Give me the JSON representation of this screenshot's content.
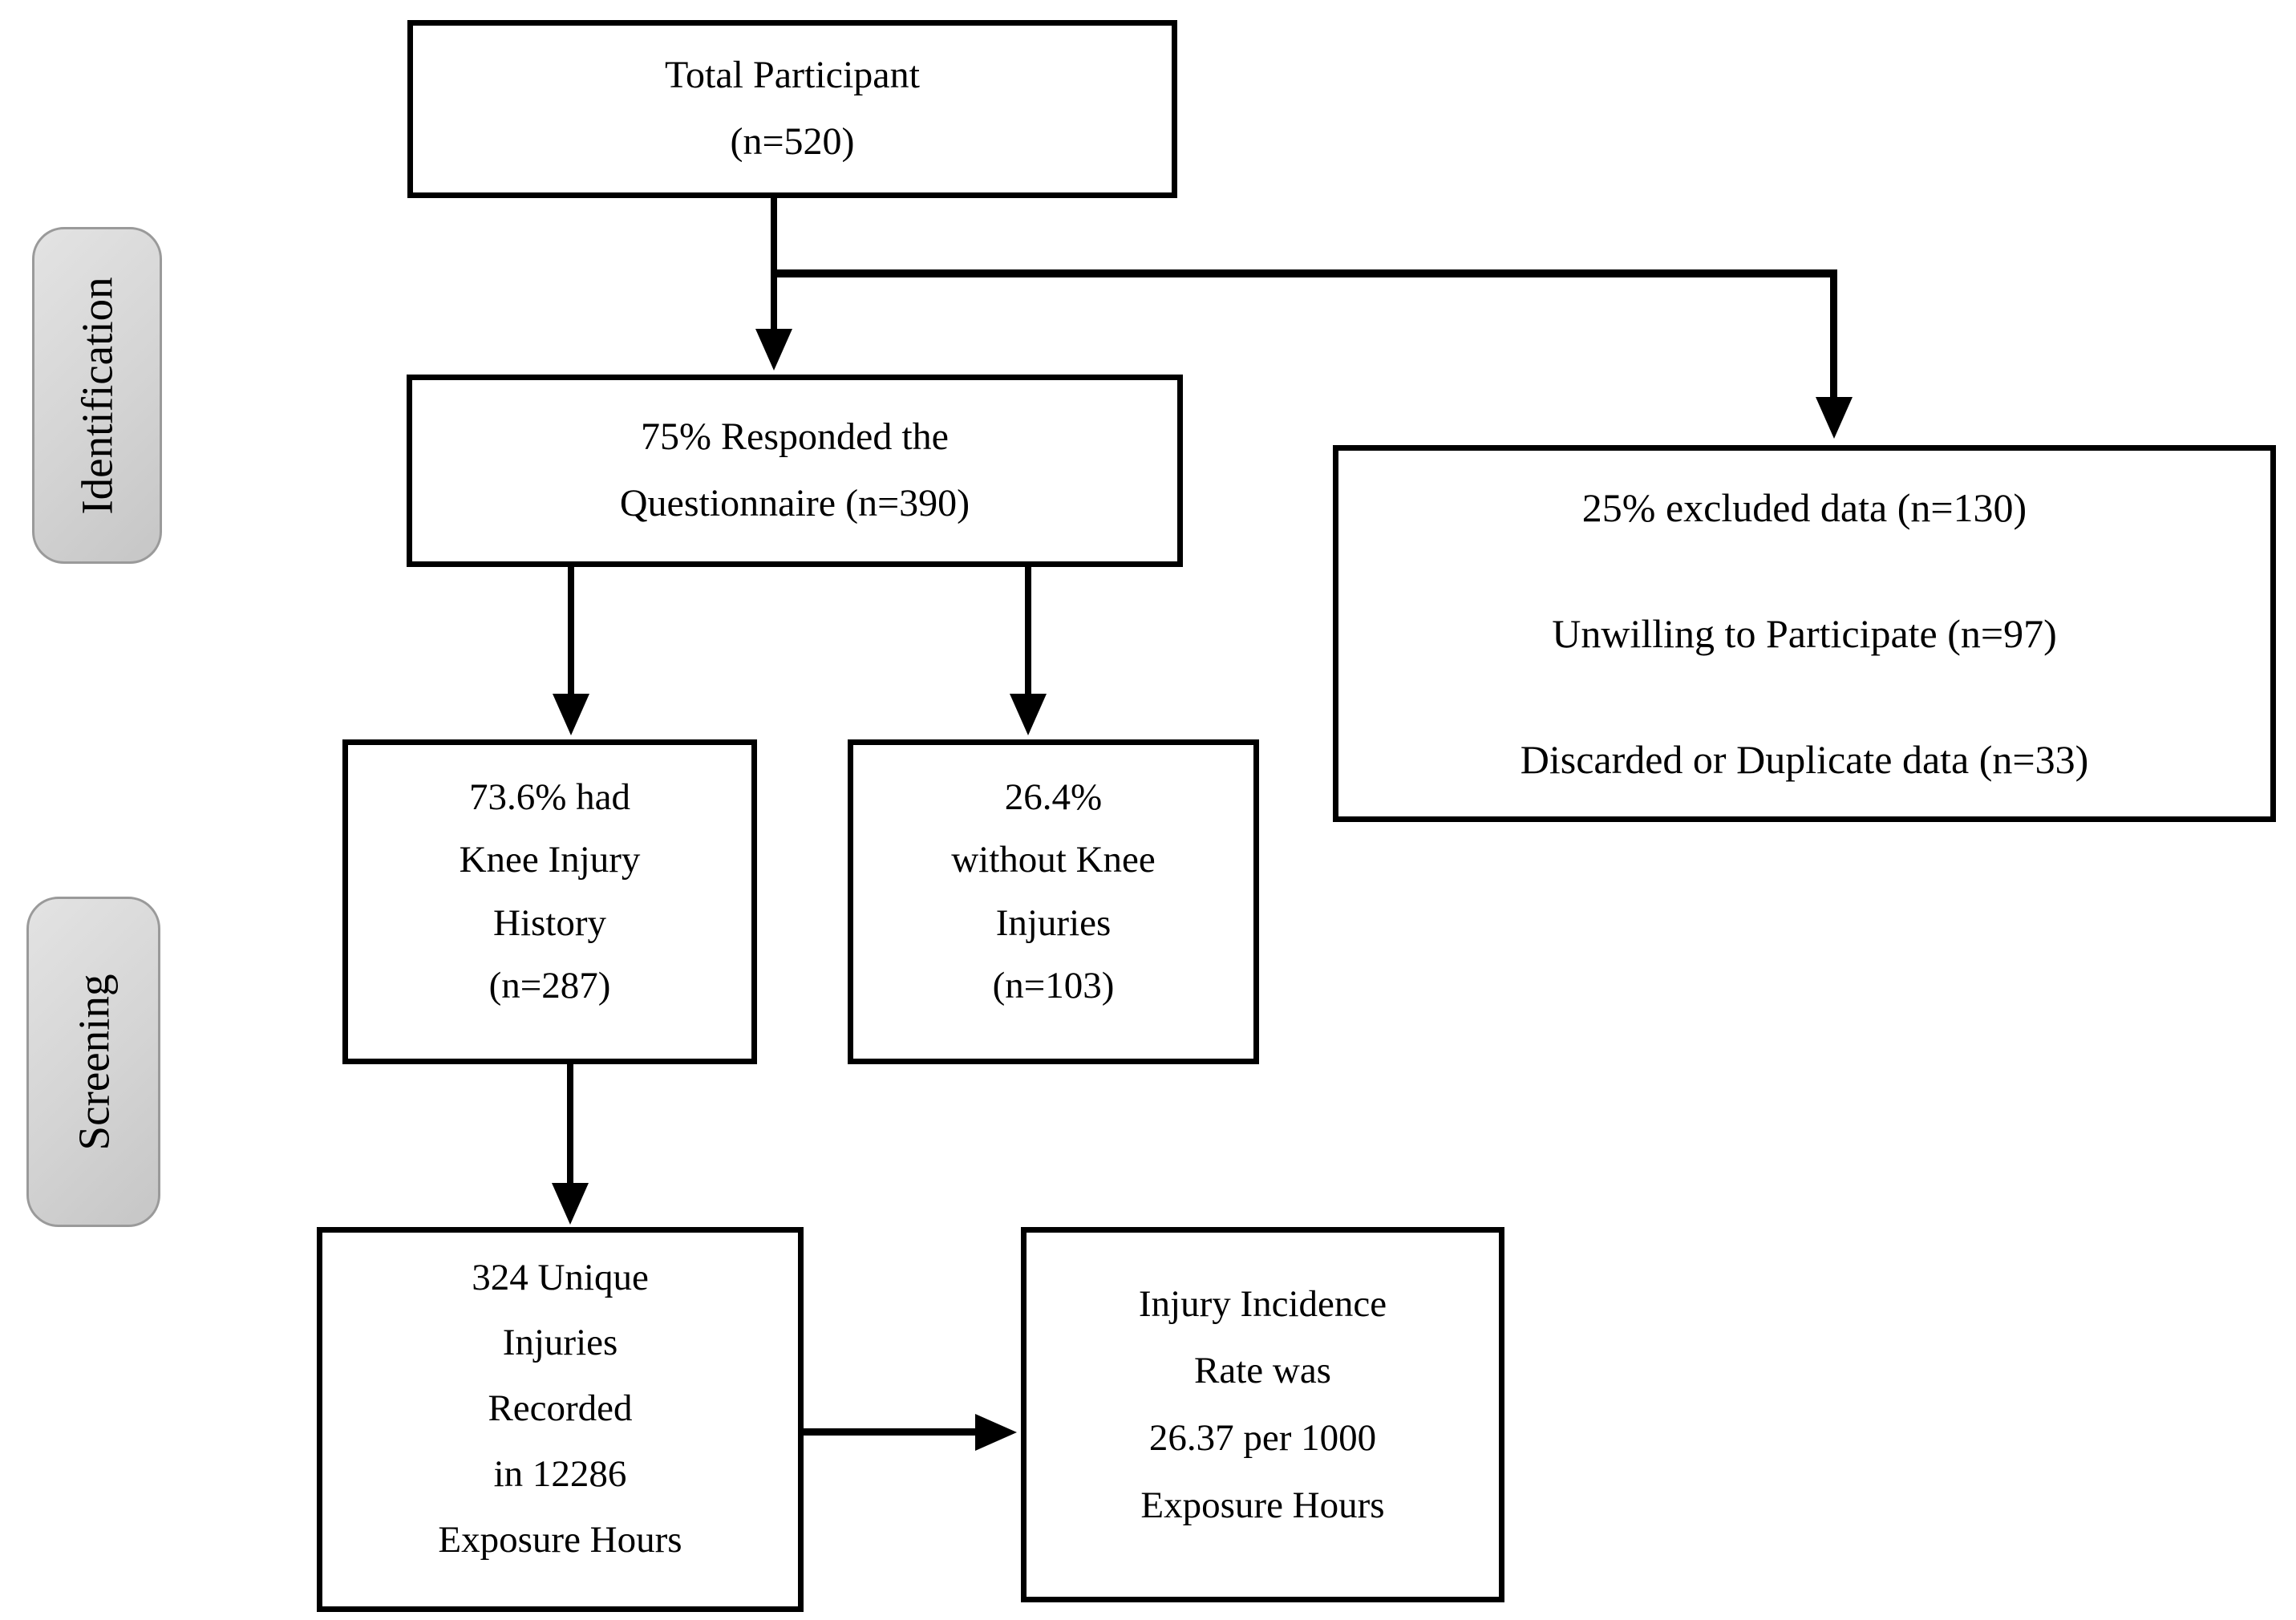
{
  "stages": [
    {
      "label": "Identification"
    },
    {
      "label": "Screening"
    }
  ],
  "boxes": {
    "total": {
      "lines": [
        "Total Participant",
        "(n=520)"
      ]
    },
    "responded": {
      "lines": [
        "75% Responded the",
        "Questionnaire (n=390)"
      ]
    },
    "excluded": {
      "lines": [
        "25% excluded data (n=130)",
        "Unwilling to Participate (n=97)",
        "Discarded or Duplicate data (n=33)"
      ]
    },
    "knee_history": {
      "lines": [
        "73.6% had",
        "Knee Injury",
        "History",
        "(n=287)"
      ]
    },
    "no_knee": {
      "lines": [
        "26.4%",
        "without Knee",
        "Injuries",
        "(n=103)"
      ]
    },
    "injuries": {
      "lines": [
        "324 Unique",
        "Injuries",
        "Recorded",
        "in 12286",
        "Exposure Hours"
      ]
    },
    "incidence": {
      "lines": [
        "Injury Incidence",
        "Rate was",
        "26.37 per 1000",
        "Exposure Hours"
      ]
    }
  },
  "colors": {
    "ink": "#000000",
    "background": "#ffffff",
    "stage_fill_light": "#e3e3e3",
    "stage_fill_mid": "#d4d4d4",
    "stage_fill_dark": "#c6c6c6",
    "stage_border": "#9a9a9a"
  }
}
